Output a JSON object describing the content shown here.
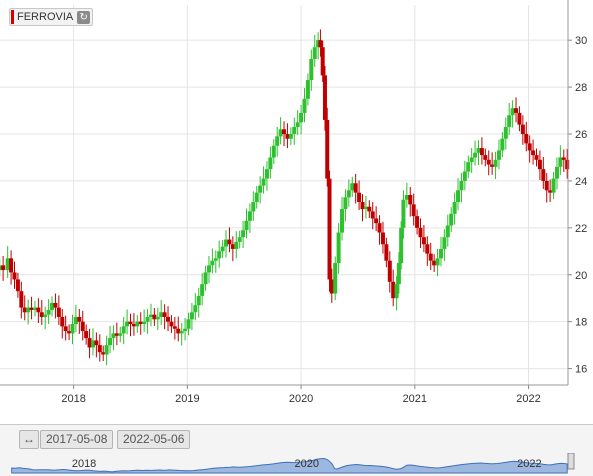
{
  "legend": {
    "label": "FERROVIA",
    "color": "#d40000",
    "refresh_icon": "refresh-icon"
  },
  "range_selector": {
    "start": "2017-05-08",
    "end": "2022-05-06",
    "icon": "range-toggle-icon"
  },
  "navigator": {
    "year_labels": [
      "2018",
      "2020",
      "2022"
    ]
  },
  "colors": {
    "up": "#2ec02e",
    "down": "#c00000",
    "navigator_fill": "#9db8e0",
    "navigator_line": "#3f6fb5"
  },
  "chart_data": {
    "type": "candlestick",
    "title": "",
    "xlabel": "",
    "ylabel": "",
    "x_range": [
      "2017-05-08",
      "2022-05-06"
    ],
    "ylim": [
      15.3,
      31.5
    ],
    "yticks": [
      16,
      18,
      20,
      22,
      24,
      26,
      28,
      30
    ],
    "x_ticks": [
      "2018",
      "2019",
      "2020",
      "2021",
      "2022"
    ],
    "grid": true,
    "y_axis_position": "right",
    "series": [
      {
        "name": "FERROVIA",
        "values": [
          [
            2017.35,
            20.4
          ],
          [
            2017.38,
            20.2
          ],
          [
            2017.42,
            20.7
          ],
          [
            2017.45,
            20.1
          ],
          [
            2017.48,
            19.8
          ],
          [
            2017.51,
            19.3
          ],
          [
            2017.54,
            18.6
          ],
          [
            2017.57,
            18.4
          ],
          [
            2017.6,
            18.6
          ],
          [
            2017.63,
            18.5
          ],
          [
            2017.66,
            18.6
          ],
          [
            2017.69,
            18.4
          ],
          [
            2017.72,
            18.2
          ],
          [
            2017.75,
            18.3
          ],
          [
            2017.78,
            18.5
          ],
          [
            2017.81,
            18.8
          ],
          [
            2017.84,
            18.6
          ],
          [
            2017.87,
            18.2
          ],
          [
            2017.9,
            17.8
          ],
          [
            2017.93,
            17.6
          ],
          [
            2017.96,
            17.5
          ],
          [
            2017.99,
            17.9
          ],
          [
            2018.02,
            18.2
          ],
          [
            2018.05,
            18.0
          ],
          [
            2018.08,
            17.6
          ],
          [
            2018.11,
            17.3
          ],
          [
            2018.14,
            16.9
          ],
          [
            2018.17,
            17.2
          ],
          [
            2018.2,
            17.0
          ],
          [
            2018.23,
            16.7
          ],
          [
            2018.26,
            16.6
          ],
          [
            2018.29,
            17.0
          ],
          [
            2018.32,
            17.3
          ],
          [
            2018.35,
            17.5
          ],
          [
            2018.38,
            17.4
          ],
          [
            2018.41,
            17.5
          ],
          [
            2018.44,
            17.8
          ],
          [
            2018.47,
            18.0
          ],
          [
            2018.5,
            17.9
          ],
          [
            2018.53,
            17.8
          ],
          [
            2018.56,
            18.0
          ],
          [
            2018.59,
            17.9
          ],
          [
            2018.62,
            18.0
          ],
          [
            2018.65,
            18.2
          ],
          [
            2018.68,
            18.3
          ],
          [
            2018.71,
            18.1
          ],
          [
            2018.74,
            18.2
          ],
          [
            2018.77,
            18.4
          ],
          [
            2018.8,
            18.2
          ],
          [
            2018.83,
            18.0
          ],
          [
            2018.86,
            17.8
          ],
          [
            2018.89,
            17.7
          ],
          [
            2018.92,
            17.5
          ],
          [
            2018.95,
            17.6
          ],
          [
            2018.98,
            17.7
          ],
          [
            2019.01,
            18.1
          ],
          [
            2019.04,
            18.4
          ],
          [
            2019.07,
            18.7
          ],
          [
            2019.1,
            19.1
          ],
          [
            2019.13,
            19.6
          ],
          [
            2019.16,
            20.1
          ],
          [
            2019.19,
            20.4
          ],
          [
            2019.22,
            20.6
          ],
          [
            2019.25,
            20.7
          ],
          [
            2019.28,
            21.0
          ],
          [
            2019.31,
            21.2
          ],
          [
            2019.34,
            21.5
          ],
          [
            2019.37,
            21.3
          ],
          [
            2019.4,
            21.1
          ],
          [
            2019.43,
            21.4
          ],
          [
            2019.46,
            21.6
          ],
          [
            2019.49,
            21.9
          ],
          [
            2019.52,
            22.3
          ],
          [
            2019.55,
            22.7
          ],
          [
            2019.58,
            23.1
          ],
          [
            2019.61,
            23.5
          ],
          [
            2019.64,
            23.8
          ],
          [
            2019.67,
            24.1
          ],
          [
            2019.7,
            24.5
          ],
          [
            2019.73,
            25.0
          ],
          [
            2019.76,
            25.5
          ],
          [
            2019.79,
            25.9
          ],
          [
            2019.82,
            26.2
          ],
          [
            2019.85,
            26.0
          ],
          [
            2019.88,
            25.8
          ],
          [
            2019.91,
            26.0
          ],
          [
            2019.94,
            26.3
          ],
          [
            2019.97,
            26.5
          ],
          [
            2020.0,
            26.9
          ],
          [
            2020.03,
            27.5
          ],
          [
            2020.06,
            28.3
          ],
          [
            2020.09,
            29.2
          ],
          [
            2020.12,
            29.7
          ],
          [
            2020.15,
            30.0
          ],
          [
            2020.17,
            29.7
          ],
          [
            2020.19,
            28.5
          ],
          [
            2020.21,
            26.6
          ],
          [
            2020.23,
            24.1
          ],
          [
            2020.25,
            19.8
          ],
          [
            2020.27,
            19.2
          ],
          [
            2020.3,
            20.5
          ],
          [
            2020.33,
            21.8
          ],
          [
            2020.36,
            22.8
          ],
          [
            2020.39,
            23.3
          ],
          [
            2020.42,
            23.6
          ],
          [
            2020.45,
            23.9
          ],
          [
            2020.48,
            23.5
          ],
          [
            2020.51,
            23.1
          ],
          [
            2020.54,
            22.8
          ],
          [
            2020.57,
            22.9
          ],
          [
            2020.6,
            22.7
          ],
          [
            2020.63,
            22.4
          ],
          [
            2020.66,
            22.2
          ],
          [
            2020.69,
            21.8
          ],
          [
            2020.72,
            21.3
          ],
          [
            2020.75,
            20.6
          ],
          [
            2020.78,
            19.7
          ],
          [
            2020.81,
            19.0
          ],
          [
            2020.84,
            19.6
          ],
          [
            2020.86,
            20.5
          ],
          [
            2020.88,
            22.0
          ],
          [
            2020.9,
            23.2
          ],
          [
            2020.93,
            23.4
          ],
          [
            2020.96,
            23.0
          ],
          [
            2020.99,
            22.5
          ],
          [
            2021.02,
            22.0
          ],
          [
            2021.05,
            21.6
          ],
          [
            2021.08,
            21.3
          ],
          [
            2021.11,
            20.9
          ],
          [
            2021.14,
            20.6
          ],
          [
            2021.17,
            20.4
          ],
          [
            2021.2,
            20.7
          ],
          [
            2021.23,
            21.1
          ],
          [
            2021.26,
            21.6
          ],
          [
            2021.29,
            22.1
          ],
          [
            2021.32,
            22.6
          ],
          [
            2021.35,
            23.1
          ],
          [
            2021.38,
            23.6
          ],
          [
            2021.41,
            24.0
          ],
          [
            2021.44,
            24.4
          ],
          [
            2021.47,
            24.8
          ],
          [
            2021.5,
            25.0
          ],
          [
            2021.53,
            25.2
          ],
          [
            2021.56,
            25.4
          ],
          [
            2021.59,
            25.1
          ],
          [
            2021.62,
            24.9
          ],
          [
            2021.65,
            24.7
          ],
          [
            2021.68,
            24.6
          ],
          [
            2021.71,
            24.9
          ],
          [
            2021.74,
            25.3
          ],
          [
            2021.77,
            25.8
          ],
          [
            2021.8,
            26.3
          ],
          [
            2021.83,
            26.8
          ],
          [
            2021.86,
            27.1
          ],
          [
            2021.89,
            26.9
          ],
          [
            2021.92,
            26.4
          ],
          [
            2021.95,
            26.0
          ],
          [
            2021.98,
            25.6
          ],
          [
            2022.01,
            25.3
          ],
          [
            2022.04,
            25.1
          ],
          [
            2022.07,
            24.9
          ],
          [
            2022.1,
            24.5
          ],
          [
            2022.13,
            24.0
          ],
          [
            2022.16,
            23.6
          ],
          [
            2022.19,
            23.5
          ],
          [
            2022.22,
            24.1
          ],
          [
            2022.25,
            24.6
          ],
          [
            2022.28,
            25.0
          ],
          [
            2022.31,
            24.9
          ],
          [
            2022.34,
            24.5
          ]
        ]
      }
    ]
  }
}
